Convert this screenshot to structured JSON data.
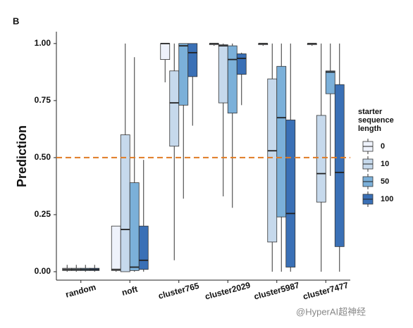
{
  "chart_data": {
    "type": "boxplot",
    "panel_label": "B",
    "y_label": "Prediction",
    "categories": [
      "random",
      "noft",
      "cluster765",
      "cluster2029",
      "cluster5987",
      "cluster7477"
    ],
    "legend_title": [
      "starter",
      "sequence",
      "length"
    ],
    "series": [
      {
        "name": "0",
        "color": "#eef2fb",
        "values": [
          {
            "min": 0,
            "q1": 0.005,
            "median": 0.01,
            "q3": 0.015,
            "max": 0.03
          },
          {
            "min": 0,
            "q1": 0.005,
            "median": 0.01,
            "q3": 0.2,
            "max": 0.2
          },
          {
            "min": 0.83,
            "q1": 0.93,
            "median": 1.0,
            "q3": 1.0,
            "max": 1.0
          },
          {
            "min": 0.99,
            "q1": 0.995,
            "median": 1.0,
            "q3": 1.0,
            "max": 1.0
          },
          {
            "min": 0.99,
            "q1": 0.995,
            "median": 1.0,
            "q3": 1.0,
            "max": 1.0
          },
          {
            "min": 0.99,
            "q1": 0.995,
            "median": 1.0,
            "q3": 1.0,
            "max": 1.0
          }
        ]
      },
      {
        "name": "10",
        "color": "#c6d9ec",
        "values": [
          {
            "min": 0,
            "q1": 0.005,
            "median": 0.01,
            "q3": 0.015,
            "max": 0.03
          },
          {
            "min": 0,
            "q1": 0.0,
            "median": 0.185,
            "q3": 0.6,
            "max": 1.0
          },
          {
            "min": 0.05,
            "q1": 0.55,
            "median": 0.74,
            "q3": 0.88,
            "max": 1.0
          },
          {
            "min": 0.33,
            "q1": 0.74,
            "median": 0.99,
            "q3": 0.995,
            "max": 1.0
          },
          {
            "min": 0,
            "q1": 0.13,
            "median": 0.53,
            "q3": 0.845,
            "max": 1.0
          },
          {
            "min": 0,
            "q1": 0.305,
            "median": 0.43,
            "q3": 0.685,
            "max": 1.0
          }
        ]
      },
      {
        "name": "50",
        "color": "#7bb0d9",
        "values": [
          {
            "min": 0,
            "q1": 0.005,
            "median": 0.01,
            "q3": 0.015,
            "max": 0.03
          },
          {
            "min": 0,
            "q1": 0.005,
            "median": 0.02,
            "q3": 0.39,
            "max": 0.94
          },
          {
            "min": 0.32,
            "q1": 0.73,
            "median": 0.99,
            "q3": 1.0,
            "max": 1.0
          },
          {
            "min": 0.28,
            "q1": 0.695,
            "median": 0.93,
            "q3": 0.99,
            "max": 1.0
          },
          {
            "min": 0,
            "q1": 0.24,
            "median": 0.675,
            "q3": 0.9,
            "max": 1.0
          },
          {
            "min": 0.42,
            "q1": 0.78,
            "median": 0.875,
            "q3": 0.88,
            "max": 1.0
          }
        ]
      },
      {
        "name": "100",
        "color": "#3a70b6",
        "values": [
          {
            "min": 0,
            "q1": 0.005,
            "median": 0.01,
            "q3": 0.015,
            "max": 0.03
          },
          {
            "min": 0,
            "q1": 0.01,
            "median": 0.05,
            "q3": 0.2,
            "max": 0.49
          },
          {
            "min": 0.64,
            "q1": 0.855,
            "median": 0.96,
            "q3": 1.0,
            "max": 1.0
          },
          {
            "min": 0.73,
            "q1": 0.865,
            "median": 0.935,
            "q3": 0.955,
            "max": 0.96
          },
          {
            "min": 0,
            "q1": 0.02,
            "median": 0.255,
            "q3": 0.665,
            "max": 1.0
          },
          {
            "min": 0,
            "q1": 0.11,
            "median": 0.435,
            "q3": 0.82,
            "max": 1.0
          }
        ]
      }
    ],
    "hline": {
      "value": 0.5,
      "color": "#e07b24"
    },
    "ylim": [
      -0.037,
      1.052
    ],
    "yticks": [
      {
        "value": 0,
        "label": "0.00"
      },
      {
        "value": 0.25,
        "label": "0.25"
      },
      {
        "value": 0.5,
        "label": "0.50"
      },
      {
        "value": 0.75,
        "label": "0.75"
      },
      {
        "value": 1,
        "label": "1.00"
      }
    ],
    "watermark": "@HyperAI超神经"
  }
}
